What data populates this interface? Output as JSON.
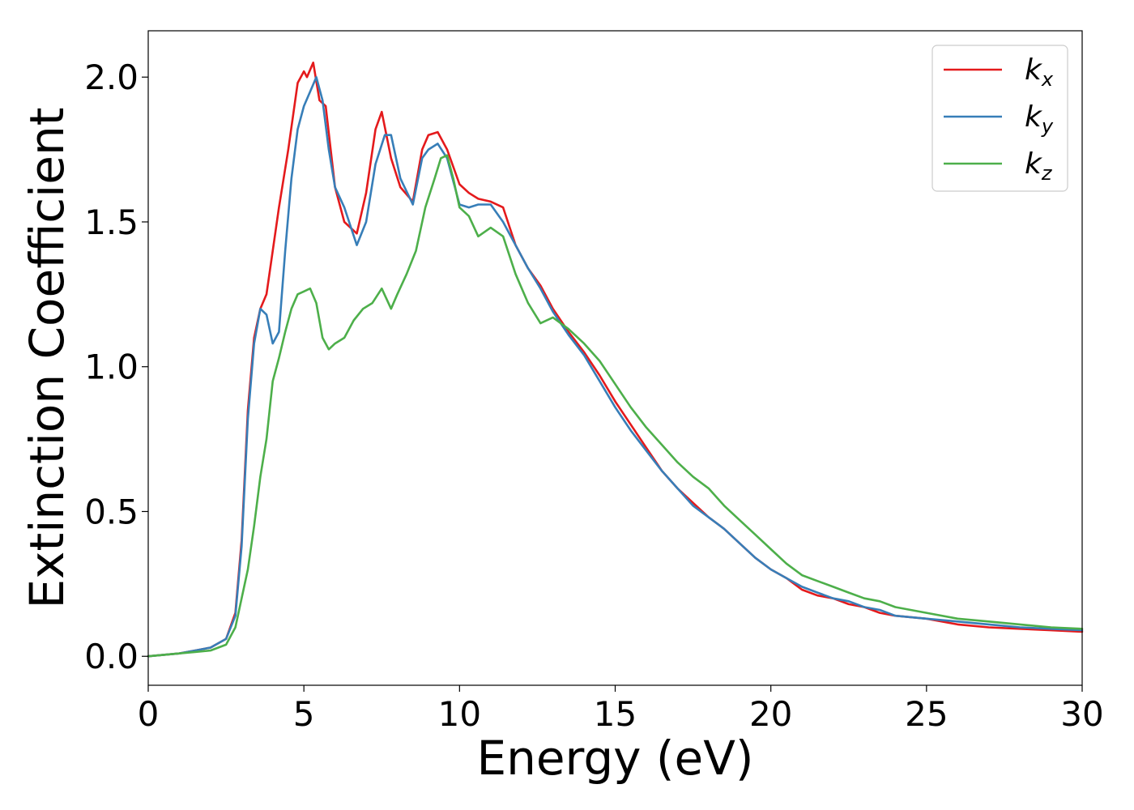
{
  "chart_data": {
    "type": "line",
    "xlabel": "Energy (eV)",
    "ylabel": "Extinction Coefficient",
    "xlim": [
      0,
      30
    ],
    "ylim": [
      -0.1,
      2.16
    ],
    "xticks": [
      0,
      5,
      10,
      15,
      20,
      25,
      30
    ],
    "xtick_labels": [
      "0",
      "5",
      "10",
      "15",
      "20",
      "25",
      "30"
    ],
    "yticks": [
      0.0,
      0.5,
      1.0,
      1.5,
      2.0
    ],
    "ytick_labels": [
      "0.0",
      "0.5",
      "1.0",
      "1.5",
      "2.0"
    ],
    "grid": false,
    "legend_position": "top-right",
    "series": [
      {
        "name": "k_x",
        "label_base": "k",
        "label_sub": "x",
        "color": "#e41a1c",
        "x": [
          0,
          1,
          1.5,
          2,
          2.5,
          2.8,
          3.0,
          3.2,
          3.4,
          3.6,
          3.8,
          4.0,
          4.2,
          4.5,
          4.8,
          5.0,
          5.1,
          5.3,
          5.5,
          5.7,
          6.0,
          6.3,
          6.7,
          7.0,
          7.3,
          7.5,
          7.8,
          8.1,
          8.5,
          8.8,
          9.0,
          9.3,
          9.6,
          10.0,
          10.3,
          10.6,
          11.0,
          11.4,
          11.8,
          12.2,
          12.6,
          13.0,
          13.5,
          14.0,
          14.5,
          15.0,
          15.5,
          16.0,
          16.5,
          17.0,
          17.5,
          18.0,
          18.5,
          19.0,
          19.5,
          20.0,
          20.5,
          21.0,
          21.5,
          22.0,
          22.5,
          23.0,
          23.5,
          24.0,
          25.0,
          26.0,
          27.0,
          28.0,
          29.0,
          30.0
        ],
        "values": [
          0.0,
          0.01,
          0.02,
          0.03,
          0.06,
          0.15,
          0.4,
          0.85,
          1.1,
          1.2,
          1.25,
          1.4,
          1.55,
          1.75,
          1.98,
          2.02,
          2.0,
          2.05,
          1.92,
          1.9,
          1.62,
          1.5,
          1.46,
          1.6,
          1.82,
          1.88,
          1.72,
          1.62,
          1.57,
          1.75,
          1.8,
          1.81,
          1.75,
          1.63,
          1.6,
          1.58,
          1.57,
          1.55,
          1.42,
          1.34,
          1.28,
          1.2,
          1.12,
          1.05,
          0.97,
          0.88,
          0.8,
          0.72,
          0.64,
          0.58,
          0.53,
          0.48,
          0.44,
          0.39,
          0.34,
          0.3,
          0.27,
          0.23,
          0.21,
          0.2,
          0.18,
          0.17,
          0.15,
          0.14,
          0.13,
          0.11,
          0.1,
          0.095,
          0.09,
          0.085
        ]
      },
      {
        "name": "k_y",
        "label_base": "k",
        "label_sub": "y",
        "color": "#377eb8",
        "x": [
          0,
          1,
          1.5,
          2,
          2.5,
          2.8,
          3.0,
          3.2,
          3.4,
          3.6,
          3.8,
          4.0,
          4.2,
          4.4,
          4.6,
          4.8,
          5.0,
          5.2,
          5.4,
          5.6,
          5.8,
          6.0,
          6.3,
          6.7,
          7.0,
          7.3,
          7.6,
          7.8,
          8.1,
          8.5,
          8.8,
          9.0,
          9.3,
          9.6,
          10.0,
          10.3,
          10.6,
          11.0,
          11.4,
          11.8,
          12.2,
          12.6,
          13.0,
          13.5,
          14.0,
          14.5,
          15.0,
          15.5,
          16.0,
          16.5,
          17.0,
          17.5,
          18.0,
          18.5,
          19.0,
          19.5,
          20.0,
          20.5,
          21.0,
          21.5,
          22.0,
          22.5,
          23.0,
          23.5,
          24.0,
          25.0,
          26.0,
          27.0,
          28.0,
          29.0,
          30.0
        ],
        "values": [
          0.0,
          0.01,
          0.02,
          0.03,
          0.06,
          0.14,
          0.38,
          0.82,
          1.08,
          1.2,
          1.18,
          1.08,
          1.12,
          1.4,
          1.65,
          1.82,
          1.9,
          1.95,
          2.0,
          1.92,
          1.75,
          1.62,
          1.55,
          1.42,
          1.5,
          1.7,
          1.8,
          1.8,
          1.65,
          1.56,
          1.72,
          1.75,
          1.77,
          1.72,
          1.56,
          1.55,
          1.56,
          1.56,
          1.5,
          1.42,
          1.34,
          1.27,
          1.19,
          1.11,
          1.04,
          0.95,
          0.86,
          0.78,
          0.71,
          0.64,
          0.58,
          0.52,
          0.48,
          0.44,
          0.39,
          0.34,
          0.3,
          0.27,
          0.24,
          0.22,
          0.2,
          0.19,
          0.17,
          0.16,
          0.14,
          0.13,
          0.12,
          0.11,
          0.1,
          0.095,
          0.09
        ]
      },
      {
        "name": "k_z",
        "label_base": "k",
        "label_sub": "z",
        "color": "#4daf4a",
        "x": [
          0,
          1,
          1.5,
          2,
          2.5,
          2.8,
          3.0,
          3.2,
          3.4,
          3.6,
          3.8,
          4.0,
          4.2,
          4.4,
          4.6,
          4.8,
          5.0,
          5.2,
          5.4,
          5.6,
          5.8,
          6.0,
          6.3,
          6.6,
          6.9,
          7.2,
          7.5,
          7.8,
          8.0,
          8.3,
          8.6,
          8.9,
          9.2,
          9.4,
          9.6,
          9.8,
          10.0,
          10.3,
          10.6,
          11.0,
          11.4,
          11.8,
          12.2,
          12.6,
          13.0,
          13.5,
          14.0,
          14.5,
          15.0,
          15.5,
          16.0,
          16.5,
          17.0,
          17.5,
          18.0,
          18.5,
          19.0,
          19.5,
          20.0,
          20.5,
          21.0,
          21.5,
          22.0,
          22.5,
          23.0,
          23.5,
          24.0,
          25.0,
          26.0,
          27.0,
          28.0,
          29.0,
          30.0
        ],
        "values": [
          0.0,
          0.01,
          0.015,
          0.02,
          0.04,
          0.1,
          0.2,
          0.3,
          0.45,
          0.62,
          0.75,
          0.95,
          1.03,
          1.12,
          1.2,
          1.25,
          1.26,
          1.27,
          1.22,
          1.1,
          1.06,
          1.08,
          1.1,
          1.16,
          1.2,
          1.22,
          1.27,
          1.2,
          1.25,
          1.32,
          1.4,
          1.55,
          1.65,
          1.72,
          1.73,
          1.65,
          1.55,
          1.52,
          1.45,
          1.48,
          1.45,
          1.32,
          1.22,
          1.15,
          1.17,
          1.13,
          1.08,
          1.02,
          0.94,
          0.86,
          0.79,
          0.73,
          0.67,
          0.62,
          0.58,
          0.52,
          0.47,
          0.42,
          0.37,
          0.32,
          0.28,
          0.26,
          0.24,
          0.22,
          0.2,
          0.19,
          0.17,
          0.15,
          0.13,
          0.12,
          0.11,
          0.1,
          0.095
        ]
      }
    ]
  }
}
